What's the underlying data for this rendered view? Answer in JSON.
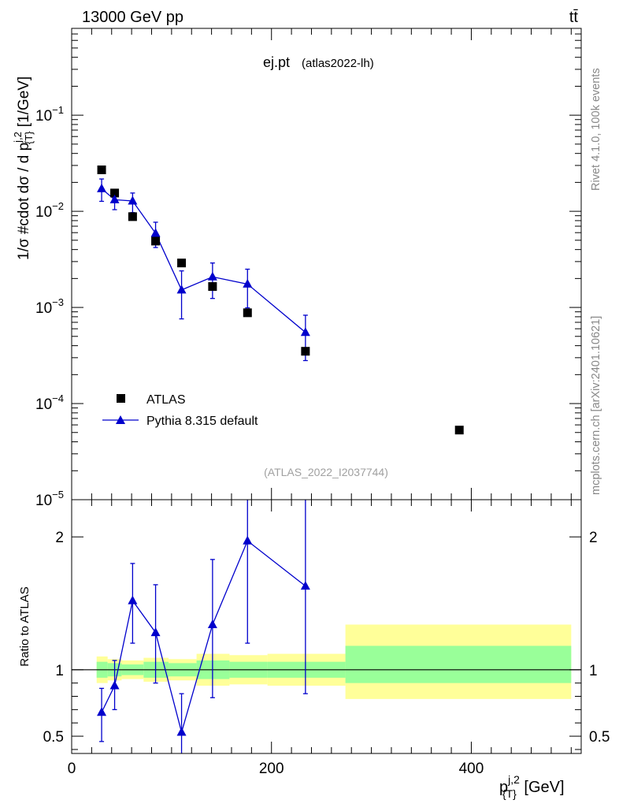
{
  "header": {
    "energy_label": "13000 GeV pp",
    "process_label": "tt̄"
  },
  "side_labels": {
    "rivet": "Rivet 4.1.0,  100k events",
    "mcplots": "mcplots.cern.ch [arXiv:2401.10621]"
  },
  "plot": {
    "title": "ej.pt",
    "subtitle": "(atlas2022-lh)",
    "analysis_id": "(ATLAS_2022_I2037744)"
  },
  "chart_data": [
    {
      "type": "scatter",
      "panel": "main",
      "title": "ej.pt (atlas2022-lh)",
      "xlabel": "p_{T}^{j,2} [GeV]",
      "ylabel": "1/σ #cdot dσ / d p_{T}^{j,2} [1/GeV]",
      "xlim": [
        0,
        510
      ],
      "ylim": [
        1e-05,
        0.8
      ],
      "yscale": "log",
      "y_ticks": [
        {
          "value": 1e-05,
          "base": "10",
          "exp": "−5"
        },
        {
          "value": 0.0001,
          "base": "10",
          "exp": "−4"
        },
        {
          "value": 0.001,
          "base": "10",
          "exp": "−3"
        },
        {
          "value": 0.01,
          "base": "10",
          "exp": "−2"
        },
        {
          "value": 0.1,
          "base": "10",
          "exp": "−1"
        }
      ],
      "legend_position": "bottom-left",
      "series": [
        {
          "name": "ATLAS",
          "color": "#000000",
          "marker": "square",
          "x": [
            30,
            43,
            61,
            84,
            110,
            141,
            176,
            234,
            388
          ],
          "y": [
            0.027,
            0.0155,
            0.0088,
            0.0049,
            0.0029,
            0.00165,
            0.00088,
            0.00035,
            5.3e-05
          ]
        },
        {
          "name": "Pythia 8.315 default",
          "color": "#0000cc",
          "marker": "triangle",
          "x": [
            30,
            43,
            61,
            84,
            110,
            141,
            176,
            234
          ],
          "y": [
            0.0172,
            0.0132,
            0.0128,
            0.0059,
            0.00152,
            0.00208,
            0.00175,
            0.00055
          ],
          "y_err_low": [
            0.0127,
            0.0104,
            0.0097,
            0.0042,
            0.00076,
            0.00124,
            0.00099,
            0.00028
          ],
          "y_err_high": [
            0.0217,
            0.0165,
            0.0155,
            0.0077,
            0.0024,
            0.0029,
            0.0025,
            0.00083
          ]
        }
      ]
    },
    {
      "type": "line",
      "panel": "ratio",
      "ylabel": "Ratio to ATLAS",
      "xlabel": "p_{T}^{j,2} [GeV]",
      "xlim": [
        0,
        510
      ],
      "ylim": [
        0.37,
        2.28
      ],
      "y_ticks": [
        0.5,
        1,
        2
      ],
      "x_ticks": [
        0,
        200,
        400
      ],
      "reference_line": 1,
      "bands": [
        {
          "x0": 25,
          "x1": 36,
          "green": [
            0.94,
            1.06
          ],
          "yellow": [
            0.9,
            1.1
          ]
        },
        {
          "x0": 36,
          "x1": 50,
          "green": [
            0.95,
            1.05
          ],
          "yellow": [
            0.92,
            1.08
          ]
        },
        {
          "x0": 50,
          "x1": 72,
          "green": [
            0.96,
            1.04
          ],
          "yellow": [
            0.93,
            1.07
          ]
        },
        {
          "x0": 72,
          "x1": 97,
          "green": [
            0.94,
            1.06
          ],
          "yellow": [
            0.91,
            1.09
          ]
        },
        {
          "x0": 97,
          "x1": 125,
          "green": [
            0.95,
            1.05
          ],
          "yellow": [
            0.92,
            1.08
          ]
        },
        {
          "x0": 125,
          "x1": 158,
          "green": [
            0.93,
            1.07
          ],
          "yellow": [
            0.88,
            1.12
          ]
        },
        {
          "x0": 158,
          "x1": 196,
          "green": [
            0.94,
            1.06
          ],
          "yellow": [
            0.89,
            1.11
          ]
        },
        {
          "x0": 196,
          "x1": 274,
          "green": [
            0.94,
            1.06
          ],
          "yellow": [
            0.88,
            1.12
          ]
        },
        {
          "x0": 274,
          "x1": 500,
          "green": [
            0.9,
            1.18
          ],
          "yellow": [
            0.78,
            1.34
          ]
        }
      ],
      "series": [
        {
          "name": "Pythia 8.315 default / ATLAS",
          "color": "#0000cc",
          "x": [
            30,
            43,
            61,
            84,
            110,
            141,
            176,
            234
          ],
          "y": [
            0.68,
            0.88,
            1.52,
            1.28,
            0.53,
            1.34,
            1.97,
            1.63
          ],
          "y_err_low": [
            0.46,
            0.7,
            1.2,
            0.9,
            0.36,
            0.79,
            1.2,
            0.82
          ],
          "y_err_high": [
            0.86,
            1.07,
            1.8,
            1.64,
            0.82,
            1.83,
            2.3,
            2.3
          ]
        }
      ]
    }
  ]
}
